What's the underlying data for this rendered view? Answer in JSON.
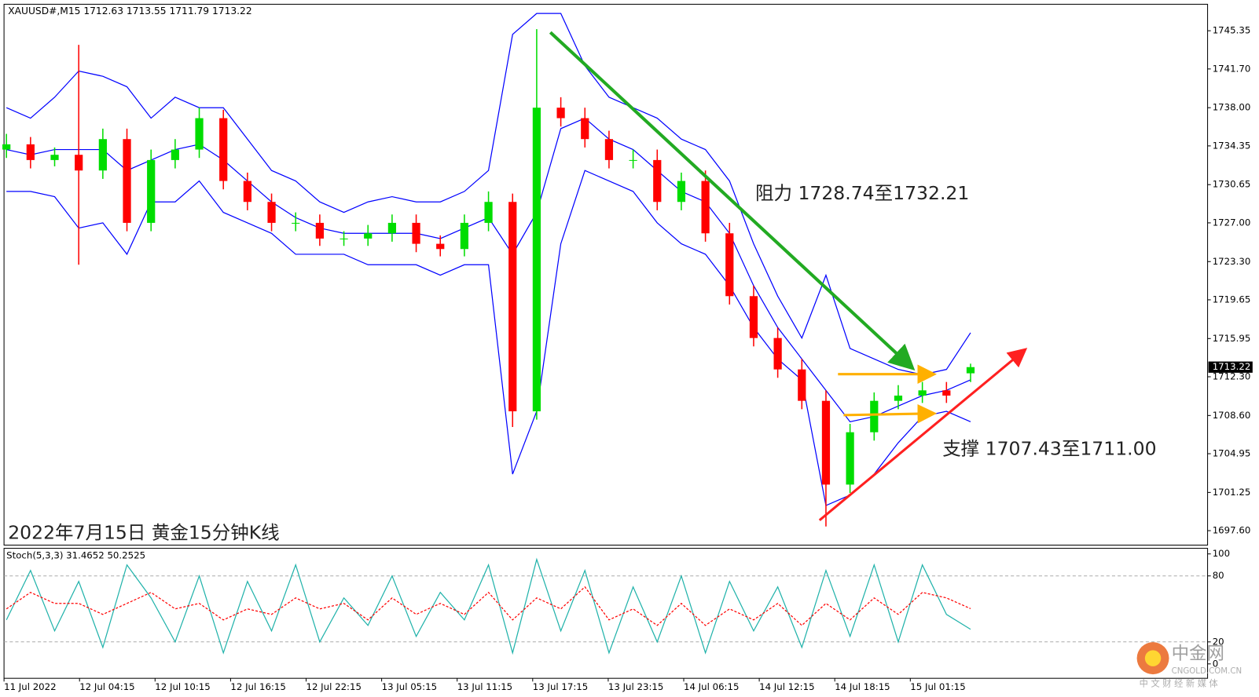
{
  "chart_data": [
    {
      "type": "candlestick",
      "title": "XAUUSD#,M15  1712.63 1713.55 1711.79 1713.22",
      "subtitle": "2022年7月15日 黄金15分钟K线",
      "annotations": [
        "阻力 1728.74至1732.21",
        "支撑 1707.43至1711.00"
      ],
      "xtick_labels": [
        "11 Jul 2022",
        "12 Jul 04:15",
        "12 Jul 10:15",
        "12 Jul 16:15",
        "12 Jul 22:15",
        "13 Jul 05:15",
        "13 Jul 11:15",
        "13 Jul 17:15",
        "13 Jul 23:15",
        "14 Jul 06:15",
        "14 Jul 12:15",
        "14 Jul 18:15",
        "15 Jul 01:15"
      ],
      "ylim": [
        1696.22,
        1747.88
      ],
      "yticks": [
        1745.35,
        {
          "value": 1741.7,
          "label": "1741.70"
        },
        {
          "value": 1738,
          "label": "1738.00"
        },
        1734.35,
        1730.65,
        {
          "value": 1727,
          "label": "1727.00"
        },
        {
          "value": 1723.3,
          "label": "1723.30"
        },
        1719.65,
        1715.95,
        {
          "value": 1712.3,
          "label": "1712.30"
        },
        {
          "value": 1708.6,
          "label": "1708.60"
        },
        1704.95,
        1701.25,
        {
          "value": 1697.6,
          "label": "1697.60"
        }
      ],
      "current_price": 1713.22,
      "up_color": "#00dd00",
      "down_color": "#ff0000",
      "open": [
        1734,
        1734.5,
        1733,
        1733.5,
        1732,
        1735,
        1727,
        1733,
        1734,
        1737,
        1731,
        1729,
        1727,
        1727,
        1725.5,
        1725.5,
        1726,
        1727,
        1725,
        1724.5,
        1727,
        1729,
        1709,
        1738,
        1737,
        1735,
        1733,
        1733,
        1729,
        1731,
        1726,
        1720,
        1716,
        1713,
        1710,
        1702,
        1707,
        1710,
        1710.5,
        1711,
        1712.63
      ],
      "high": [
        1735.5,
        1735.2,
        1734.2,
        1744,
        1736,
        1736,
        1734,
        1735,
        1738,
        1737.8,
        1731.8,
        1729.8,
        1728,
        1727.8,
        1726.2,
        1726.8,
        1727.8,
        1727.8,
        1725.8,
        1727.8,
        1730,
        1729.8,
        1745.5,
        1739,
        1738,
        1735.8,
        1734,
        1734,
        1731.8,
        1732,
        1727,
        1721,
        1717,
        1714,
        1711,
        1707.8,
        1710.8,
        1711.5,
        1711.8,
        1711.8,
        1713.55
      ],
      "low": [
        1733.2,
        1732.2,
        1732.4,
        1723,
        1731.2,
        1726.2,
        1726.2,
        1732.2,
        1733.2,
        1730.2,
        1728.2,
        1726.2,
        1726.2,
        1724.8,
        1724.8,
        1724.8,
        1725.2,
        1724.2,
        1723.8,
        1723.8,
        1726.2,
        1707.5,
        1708.2,
        1736.2,
        1734.2,
        1732.2,
        1732.2,
        1728.2,
        1728.2,
        1725.2,
        1719.2,
        1715.2,
        1712.2,
        1709.2,
        1698,
        1701.2,
        1706.2,
        1709.2,
        1709.8,
        1709.8,
        1711.79
      ],
      "close": [
        1734.5,
        1733,
        1733.5,
        1732,
        1735,
        1727,
        1733,
        1734,
        1737,
        1731,
        1729,
        1727,
        1727,
        1725.5,
        1725.5,
        1726,
        1727,
        1725,
        1724.5,
        1727,
        1729,
        1709,
        1738,
        1737,
        1735,
        1733,
        1733,
        1729,
        1731,
        1726,
        1720,
        1716,
        1713,
        1710,
        1702,
        1707,
        1710,
        1710.5,
        1711,
        1710.5,
        1713.22
      ],
      "bands": {
        "color": "#0000ff",
        "upper": [
          1738,
          1737,
          1739,
          1741.5,
          1741,
          1740,
          1737,
          1739,
          1738,
          1738,
          1735,
          1732,
          1731,
          1729,
          1728,
          1729,
          1729.5,
          1729,
          1729,
          1730,
          1732,
          1745,
          1747,
          1747,
          1742,
          1739,
          1738,
          1737,
          1735,
          1734,
          1731,
          1725,
          1720,
          1716,
          1722,
          1715,
          1714,
          1713,
          1712.5,
          1713,
          1716.5
        ],
        "middle": [
          1734,
          1733.5,
          1734,
          1734,
          1734,
          1732,
          1733,
          1734,
          1734.5,
          1733,
          1731,
          1729,
          1727.5,
          1726.5,
          1726,
          1726,
          1726,
          1726,
          1725.5,
          1726.5,
          1727.5,
          1724,
          1728,
          1736,
          1737,
          1735,
          1734,
          1732,
          1730,
          1729,
          1726,
          1721,
          1717,
          1714,
          1711,
          1708,
          1708.5,
          1709.5,
          1710.5,
          1711,
          1712
        ],
        "lower": [
          1730,
          1730,
          1729.5,
          1726.5,
          1727,
          1724,
          1729,
          1729,
          1731,
          1728,
          1727,
          1726,
          1724,
          1724,
          1724,
          1723,
          1723,
          1723,
          1722,
          1723,
          1723,
          1703,
          1709,
          1725,
          1732,
          1731,
          1730,
          1727,
          1725,
          1724,
          1721,
          1717,
          1714,
          1712,
          1700,
          1701,
          1703,
          1706,
          1708.5,
          1709,
          1708
        ]
      }
    },
    {
      "type": "line",
      "title": "Stoch(5,3,3) 31.4652 50.2525",
      "ylim": [
        -13.1,
        105.1
      ],
      "yticks": [
        100,
        80,
        20,
        0
      ],
      "levels": [
        80,
        20
      ],
      "series": [
        {
          "color": "#20b2aa",
          "values": [
            40,
            85,
            30,
            75,
            15,
            90,
            60,
            20,
            80,
            10,
            75,
            30,
            90,
            20,
            60,
            35,
            80,
            25,
            65,
            40,
            90,
            10,
            95,
            30,
            85,
            10,
            70,
            20,
            80,
            10,
            75,
            30,
            70,
            15,
            85,
            25,
            90,
            20,
            90,
            45,
            31.4652
          ]
        },
        {
          "color": "#ff0000",
          "dashed": true,
          "values": [
            50,
            65,
            55,
            55,
            45,
            55,
            65,
            50,
            55,
            40,
            50,
            45,
            60,
            50,
            55,
            40,
            60,
            45,
            55,
            45,
            65,
            40,
            60,
            50,
            70,
            40,
            50,
            35,
            55,
            35,
            50,
            40,
            55,
            35,
            55,
            40,
            60,
            45,
            65,
            60,
            50.2525
          ]
        }
      ]
    }
  ],
  "watermark": {
    "name": "中金网",
    "site": "CNGOLD.COM.CN",
    "slogan": "中 文 财 经 新 媒 体"
  }
}
